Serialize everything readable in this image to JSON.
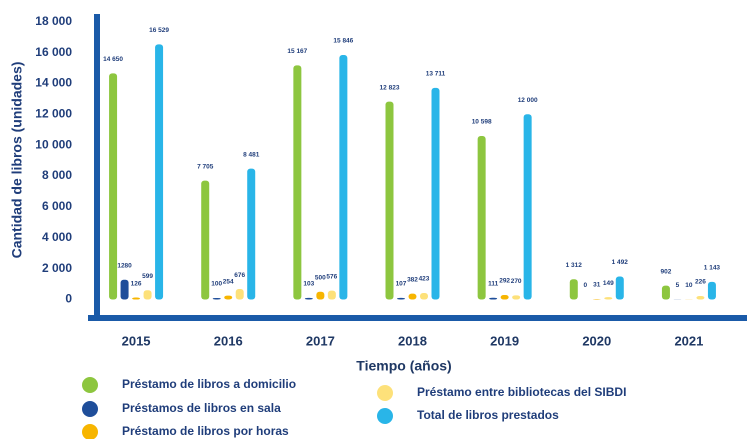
{
  "chart_data": {
    "type": "bar",
    "y_label": "Cantidad de libros (unidades)",
    "x_label": "Tiempo (años)",
    "categories": [
      "2015",
      "2016",
      "2017",
      "2018",
      "2019",
      "2020",
      "2021"
    ],
    "series": [
      {
        "name": "Préstamo de libros a domicilio",
        "color": "#8dc63f",
        "values": [
          14650,
          7705,
          15167,
          12823,
          10598,
          1312,
          902
        ],
        "value_labels": [
          "14 650",
          "7 705",
          "15 167",
          "12 823",
          "10 598",
          "1 312",
          "902"
        ]
      },
      {
        "name": "Préstamos de libros en sala",
        "color": "#1f4e9a",
        "values": [
          1280,
          100,
          103,
          107,
          111,
          0,
          5
        ]
      },
      {
        "name": "Préstamo de libros por horas",
        "color": "#f7b500",
        "values": [
          126,
          254,
          500,
          382,
          292,
          31,
          10
        ]
      },
      {
        "name": "Préstamo entre bibliotecas del SIBDI",
        "color": "#fde17a",
        "values": [
          599,
          676,
          576,
          423,
          270,
          149,
          226
        ]
      },
      {
        "name": "Total de libros prestados",
        "color": "#29b5e8",
        "values": [
          16529,
          8481,
          15846,
          13711,
          12000,
          1492,
          1143
        ],
        "value_labels": [
          "16 529",
          "8 481",
          "15 846",
          "13 711",
          "12 000",
          "1 492",
          "1 143"
        ]
      }
    ],
    "ylim": [
      -1200,
      18500
    ],
    "yticks": [
      0,
      {
        "value": 2000,
        "label": "2 000"
      },
      {
        "value": 4000,
        "label": "4 000"
      },
      {
        "value": 6000,
        "label": "6 000"
      },
      {
        "value": 8000,
        "label": "8 000"
      },
      {
        "value": 10000,
        "label": "10 000"
      },
      {
        "value": 12000,
        "label": "12 000"
      },
      {
        "value": 14000,
        "label": "14 000"
      },
      {
        "value": 16000,
        "label": "16 000"
      },
      {
        "value": 18000,
        "label": "18 000"
      }
    ],
    "grid": false
  }
}
